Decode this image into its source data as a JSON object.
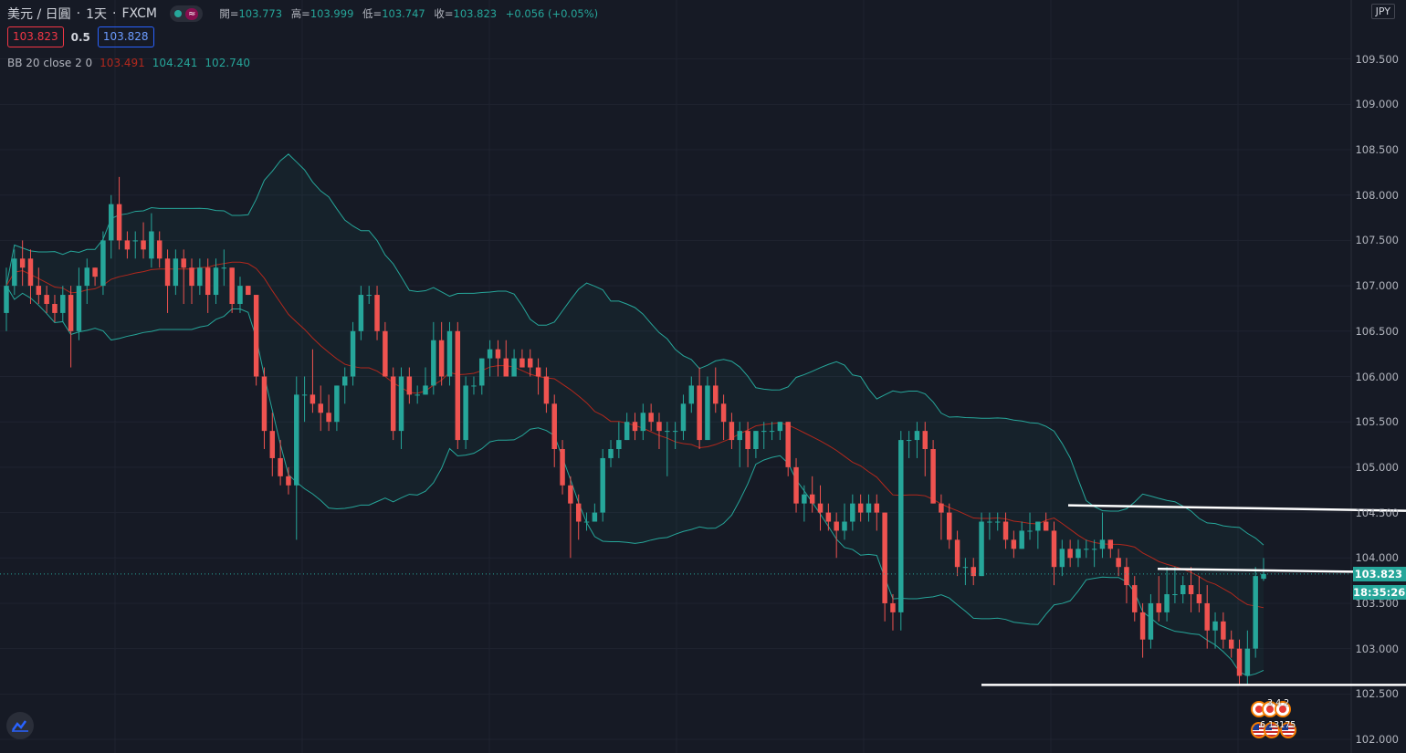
{
  "header": {
    "symbol": "美元 / 日圓",
    "interval": "1天",
    "exchange": "FXCM",
    "market_icon": "≈",
    "ohlc": {
      "open_label": "開=",
      "open": "103.773",
      "high_label": "高=",
      "high": "103.999",
      "low_label": "低=",
      "low": "103.747",
      "close_label": "收=",
      "close": "103.823",
      "change": "+0.056 (+0.05%)"
    },
    "sell_price": "103.823",
    "spread": "0.5",
    "buy_price": "103.828"
  },
  "indicator": {
    "name": "BB 20 close 2 0",
    "basis": "103.491",
    "upper": "104.241",
    "lower": "102.740"
  },
  "price_axis": {
    "currency": "JPY",
    "labels": [
      "109.500",
      "109.000",
      "108.500",
      "108.000",
      "107.500",
      "107.000",
      "106.500",
      "106.000",
      "105.500",
      "105.000",
      "104.500",
      "104.000",
      "103.500",
      "103.000",
      "102.500",
      "102.000"
    ],
    "current_price": "103.823",
    "countdown": "18:35:26"
  },
  "events": {
    "row1_counts": "3 4 2",
    "row2_counts": "6 13175"
  },
  "colors": {
    "up": "#26a69a",
    "down": "#ef5350",
    "bb_basis": "#b2281d",
    "bb_band": "#26a69a",
    "background": "#161a25",
    "grid": "#1f2330"
  },
  "chart_data": {
    "type": "candlestick",
    "title": "美元 / 日圓 · 1天 · FXCM",
    "y_axis_range": [
      101.95,
      110.05
    ],
    "candles": [
      [
        106.7,
        107.2,
        106.5,
        107.0
      ],
      [
        107.0,
        107.4,
        106.9,
        107.3
      ],
      [
        107.3,
        107.5,
        107.0,
        107.2
      ],
      [
        107.3,
        107.4,
        106.8,
        107.0
      ],
      [
        107.0,
        107.2,
        106.8,
        106.9
      ],
      [
        106.9,
        107.0,
        106.7,
        106.8
      ],
      [
        106.8,
        106.9,
        106.6,
        106.7
      ],
      [
        106.7,
        107.0,
        106.6,
        106.9
      ],
      [
        106.9,
        107.0,
        106.1,
        106.5
      ],
      [
        106.5,
        107.2,
        106.4,
        107.0
      ],
      [
        107.0,
        107.3,
        106.8,
        107.2
      ],
      [
        107.2,
        107.2,
        107.0,
        107.1
      ],
      [
        107.0,
        107.6,
        106.9,
        107.5
      ],
      [
        107.5,
        108.0,
        107.3,
        107.9
      ],
      [
        107.9,
        108.2,
        107.4,
        107.5
      ],
      [
        107.5,
        107.6,
        107.3,
        107.4
      ],
      [
        107.5,
        107.6,
        107.3,
        107.5
      ],
      [
        107.5,
        107.7,
        107.3,
        107.4
      ],
      [
        107.3,
        107.8,
        107.2,
        107.6
      ],
      [
        107.5,
        107.6,
        107.2,
        107.3
      ],
      [
        107.3,
        107.4,
        106.7,
        107.0
      ],
      [
        107.0,
        107.4,
        106.9,
        107.3
      ],
      [
        107.3,
        107.4,
        106.8,
        107.2
      ],
      [
        107.2,
        107.3,
        106.8,
        107.0
      ],
      [
        107.0,
        107.3,
        106.9,
        107.2
      ],
      [
        107.2,
        107.3,
        106.7,
        106.9
      ],
      [
        106.9,
        107.3,
        106.8,
        107.2
      ],
      [
        107.2,
        107.4,
        107.0,
        107.2
      ],
      [
        107.2,
        107.2,
        106.7,
        106.8
      ],
      [
        106.8,
        107.1,
        106.7,
        107.0
      ],
      [
        107.0,
        107.0,
        106.9,
        106.9
      ],
      [
        106.9,
        106.9,
        105.9,
        106.0
      ],
      [
        106.0,
        106.1,
        105.2,
        105.4
      ],
      [
        105.4,
        105.6,
        104.9,
        105.1
      ],
      [
        105.1,
        105.3,
        104.8,
        104.9
      ],
      [
        104.9,
        105.0,
        104.7,
        104.8
      ],
      [
        104.8,
        106.0,
        104.2,
        105.8
      ],
      [
        105.8,
        106.0,
        105.5,
        105.8
      ],
      [
        105.8,
        106.3,
        105.6,
        105.7
      ],
      [
        105.7,
        105.9,
        105.4,
        105.6
      ],
      [
        105.6,
        105.8,
        105.4,
        105.5
      ],
      [
        105.5,
        105.9,
        105.4,
        105.9
      ],
      [
        105.9,
        106.1,
        105.7,
        106.0
      ],
      [
        106.0,
        106.6,
        105.9,
        106.5
      ],
      [
        106.5,
        107.0,
        106.4,
        106.9
      ],
      [
        106.9,
        107.0,
        106.8,
        106.9
      ],
      [
        106.9,
        107.0,
        106.4,
        106.5
      ],
      [
        106.5,
        106.6,
        106.0,
        106.0
      ],
      [
        106.0,
        106.1,
        105.3,
        105.4
      ],
      [
        105.4,
        106.1,
        105.2,
        106.0
      ],
      [
        106.0,
        106.1,
        105.7,
        105.8
      ],
      [
        105.8,
        105.9,
        105.7,
        105.8
      ],
      [
        105.8,
        106.1,
        105.8,
        105.9
      ],
      [
        105.9,
        106.6,
        105.8,
        106.4
      ],
      [
        106.4,
        106.6,
        105.9,
        106.0
      ],
      [
        106.0,
        106.6,
        105.9,
        106.5
      ],
      [
        106.5,
        106.6,
        105.2,
        105.3
      ],
      [
        105.3,
        106.0,
        105.2,
        105.9
      ],
      [
        105.9,
        106.0,
        105.8,
        105.9
      ],
      [
        105.9,
        106.2,
        105.8,
        106.2
      ],
      [
        106.2,
        106.4,
        106.0,
        106.3
      ],
      [
        106.3,
        106.4,
        106.0,
        106.2
      ],
      [
        106.2,
        106.4,
        106.0,
        106.0
      ],
      [
        106.0,
        106.3,
        106.0,
        106.2
      ],
      [
        106.2,
        106.3,
        106.1,
        106.1
      ],
      [
        106.2,
        106.3,
        106.0,
        106.1
      ],
      [
        106.1,
        106.2,
        105.8,
        106.0
      ],
      [
        106.0,
        106.1,
        105.6,
        105.7
      ],
      [
        105.7,
        105.8,
        105.0,
        105.2
      ],
      [
        105.2,
        105.3,
        104.7,
        104.8
      ],
      [
        104.8,
        104.9,
        104.0,
        104.6
      ],
      [
        104.6,
        104.7,
        104.2,
        104.4
      ],
      [
        104.4,
        104.5,
        104.3,
        104.4
      ],
      [
        104.4,
        104.6,
        104.4,
        104.5
      ],
      [
        104.5,
        105.2,
        104.4,
        105.1
      ],
      [
        105.1,
        105.3,
        105.0,
        105.2
      ],
      [
        105.2,
        105.5,
        105.1,
        105.3
      ],
      [
        105.3,
        105.6,
        105.3,
        105.5
      ],
      [
        105.5,
        105.6,
        105.3,
        105.4
      ],
      [
        105.4,
        105.7,
        105.3,
        105.6
      ],
      [
        105.6,
        105.7,
        105.4,
        105.5
      ],
      [
        105.5,
        105.6,
        105.2,
        105.4
      ],
      [
        105.4,
        105.5,
        104.9,
        105.4
      ],
      [
        105.4,
        105.5,
        105.2,
        105.4
      ],
      [
        105.4,
        105.8,
        105.3,
        105.7
      ],
      [
        105.7,
        106.0,
        105.6,
        105.9
      ],
      [
        105.9,
        106.1,
        105.2,
        105.3
      ],
      [
        105.3,
        106.0,
        105.3,
        105.9
      ],
      [
        105.9,
        106.1,
        105.6,
        105.7
      ],
      [
        105.7,
        105.8,
        105.3,
        105.5
      ],
      [
        105.5,
        105.6,
        105.2,
        105.3
      ],
      [
        105.3,
        105.5,
        105.0,
        105.4
      ],
      [
        105.4,
        105.5,
        105.0,
        105.2
      ],
      [
        105.2,
        105.4,
        105.1,
        105.4
      ],
      [
        105.4,
        105.5,
        105.2,
        105.4
      ],
      [
        105.4,
        105.5,
        105.3,
        105.4
      ],
      [
        105.4,
        105.5,
        105.3,
        105.5
      ],
      [
        105.5,
        105.5,
        104.9,
        105.0
      ],
      [
        105.0,
        105.1,
        104.5,
        104.6
      ],
      [
        104.6,
        104.8,
        104.4,
        104.7
      ],
      [
        104.7,
        104.9,
        104.5,
        104.6
      ],
      [
        104.6,
        104.8,
        104.3,
        104.5
      ],
      [
        104.5,
        104.6,
        104.3,
        104.4
      ],
      [
        104.4,
        104.5,
        104.0,
        104.3
      ],
      [
        104.3,
        104.6,
        104.2,
        104.4
      ],
      [
        104.4,
        104.7,
        104.3,
        104.6
      ],
      [
        104.6,
        104.7,
        104.4,
        104.5
      ],
      [
        104.5,
        104.7,
        104.4,
        104.6
      ],
      [
        104.6,
        104.7,
        104.3,
        104.5
      ],
      [
        104.5,
        104.5,
        103.3,
        103.5
      ],
      [
        103.5,
        103.6,
        103.2,
        103.4
      ],
      [
        103.4,
        105.4,
        103.2,
        105.3
      ],
      [
        105.3,
        105.4,
        105.1,
        105.3
      ],
      [
        105.3,
        105.5,
        105.1,
        105.4
      ],
      [
        105.4,
        105.5,
        104.9,
        105.2
      ],
      [
        105.2,
        105.3,
        104.6,
        104.6
      ],
      [
        104.6,
        104.7,
        104.2,
        104.5
      ],
      [
        104.5,
        104.6,
        104.1,
        104.2
      ],
      [
        104.2,
        104.3,
        103.8,
        103.9
      ],
      [
        103.9,
        104.0,
        103.7,
        103.9
      ],
      [
        103.9,
        104.0,
        103.7,
        103.8
      ],
      [
        103.8,
        104.5,
        103.8,
        104.4
      ],
      [
        104.4,
        104.5,
        104.2,
        104.4
      ],
      [
        104.4,
        104.5,
        104.3,
        104.4
      ],
      [
        104.4,
        104.5,
        104.1,
        104.2
      ],
      [
        104.2,
        104.3,
        104.0,
        104.1
      ],
      [
        104.1,
        104.4,
        104.1,
        104.3
      ],
      [
        104.3,
        104.5,
        104.2,
        104.3
      ],
      [
        104.3,
        104.4,
        104.1,
        104.4
      ],
      [
        104.4,
        104.5,
        104.3,
        104.3
      ],
      [
        104.3,
        104.4,
        103.7,
        103.9
      ],
      [
        103.9,
        104.2,
        103.8,
        104.1
      ],
      [
        104.1,
        104.2,
        103.9,
        104.0
      ],
      [
        104.0,
        104.2,
        103.9,
        104.1
      ],
      [
        104.1,
        104.2,
        104.0,
        104.1
      ],
      [
        104.1,
        104.2,
        103.9,
        104.1
      ],
      [
        104.1,
        104.5,
        104.0,
        104.2
      ],
      [
        104.2,
        104.2,
        104.0,
        104.1
      ],
      [
        104.0,
        104.1,
        103.8,
        103.9
      ],
      [
        103.9,
        104.0,
        103.5,
        103.7
      ],
      [
        103.7,
        103.8,
        103.3,
        103.4
      ],
      [
        103.4,
        103.5,
        102.9,
        103.1
      ],
      [
        103.1,
        103.6,
        103.0,
        103.5
      ],
      [
        103.5,
        103.8,
        103.3,
        103.4
      ],
      [
        103.4,
        103.9,
        103.3,
        103.6
      ],
      [
        103.6,
        103.9,
        103.5,
        103.6
      ],
      [
        103.6,
        103.8,
        103.5,
        103.7
      ],
      [
        103.7,
        103.9,
        103.4,
        103.6
      ],
      [
        103.6,
        103.8,
        103.4,
        103.5
      ],
      [
        103.5,
        103.7,
        103.0,
        103.2
      ],
      [
        103.2,
        103.4,
        103.0,
        103.3
      ],
      [
        103.3,
        103.4,
        103.0,
        103.1
      ],
      [
        103.1,
        103.2,
        102.9,
        103.0
      ],
      [
        103.0,
        103.1,
        102.6,
        102.7
      ],
      [
        102.7,
        103.2,
        102.6,
        103.0
      ],
      [
        103.0,
        103.9,
        102.9,
        103.8
      ],
      [
        103.77,
        103.999,
        103.747,
        103.823
      ]
    ],
    "bollinger_bands": {
      "period": 20,
      "stddev": 2,
      "basis_latest": 103.491,
      "upper_latest": 104.241,
      "lower_latest": 102.74
    },
    "trendlines": [
      {
        "from_price": 104.58,
        "to_price": 104.52
      },
      {
        "from_price": 103.88,
        "to_price": 103.84
      },
      {
        "from_price": 102.6,
        "to_price": 102.6
      }
    ]
  }
}
